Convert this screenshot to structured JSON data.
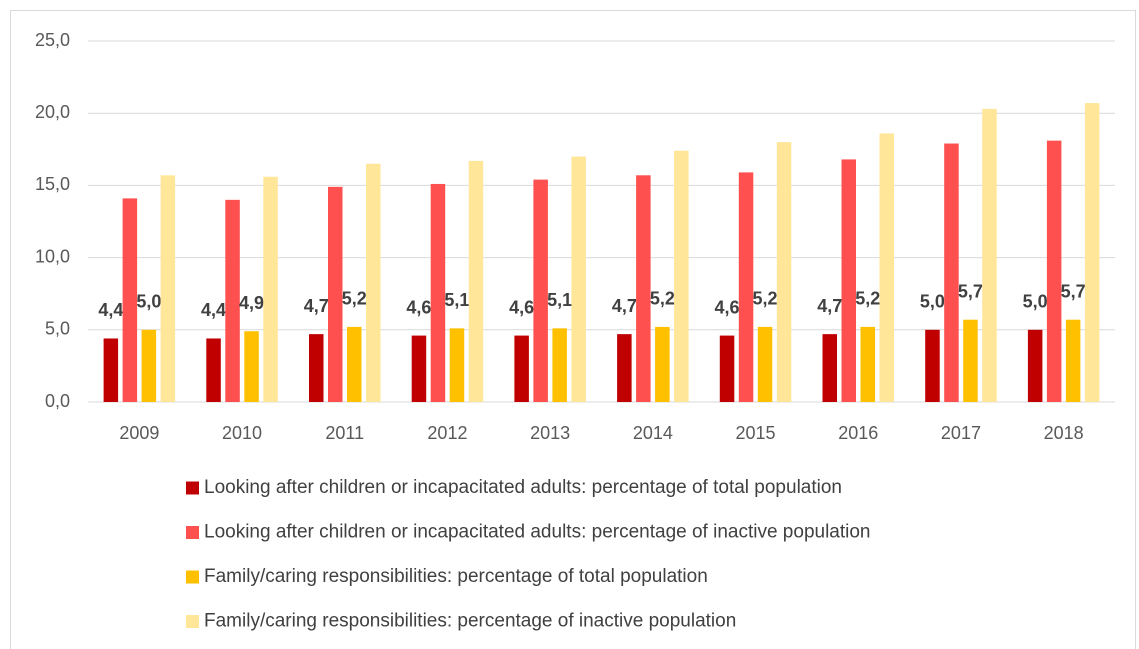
{
  "chart_data": {
    "type": "bar",
    "categories": [
      "2009",
      "2010",
      "2011",
      "2012",
      "2013",
      "2014",
      "2015",
      "2016",
      "2017",
      "2018"
    ],
    "series": [
      {
        "name": "Looking after children or incapacitated adults: percentage of total population",
        "color": "#c00000",
        "values": [
          4.4,
          4.4,
          4.7,
          4.6,
          4.6,
          4.7,
          4.6,
          4.7,
          5.0,
          5.0
        ],
        "value_labels": [
          "4,4",
          "4,4",
          "4,7",
          "4,6",
          "4,6",
          "4,7",
          "4,6",
          "4,7",
          "5,0",
          "5,0"
        ]
      },
      {
        "name": "Looking after children or incapacitated adults: percentage of inactive population",
        "color": "#ff5050",
        "values": [
          14.1,
          14.0,
          14.9,
          15.1,
          15.4,
          15.7,
          15.9,
          16.8,
          17.9,
          18.1
        ]
      },
      {
        "name": "Family/caring responsibilities: percentage of total population",
        "color": "#ffc000",
        "values": [
          5.0,
          4.9,
          5.2,
          5.1,
          5.1,
          5.2,
          5.2,
          5.2,
          5.7,
          5.7
        ],
        "value_labels": [
          "5,0",
          "4,9",
          "5,2",
          "5,1",
          "5,1",
          "5,2",
          "5,2",
          "5,2",
          "5,7",
          "5,7"
        ]
      },
      {
        "name": "Family/caring responsibilities: percentage of inactive population",
        "color": "#ffe699",
        "values": [
          15.7,
          15.6,
          16.5,
          16.7,
          17.0,
          17.4,
          18.0,
          18.6,
          20.3,
          20.7
        ]
      }
    ],
    "ylim": [
      0,
      25
    ],
    "yticks": [
      {
        "value": 0,
        "label": "0,0"
      },
      {
        "value": 5,
        "label": "5,0"
      },
      {
        "value": 10,
        "label": "10,0"
      },
      {
        "value": 15,
        "label": "15,0"
      },
      {
        "value": 20,
        "label": "20,0"
      },
      {
        "value": 25,
        "label": "25,0"
      }
    ],
    "grid": true,
    "legend": "bottom"
  }
}
